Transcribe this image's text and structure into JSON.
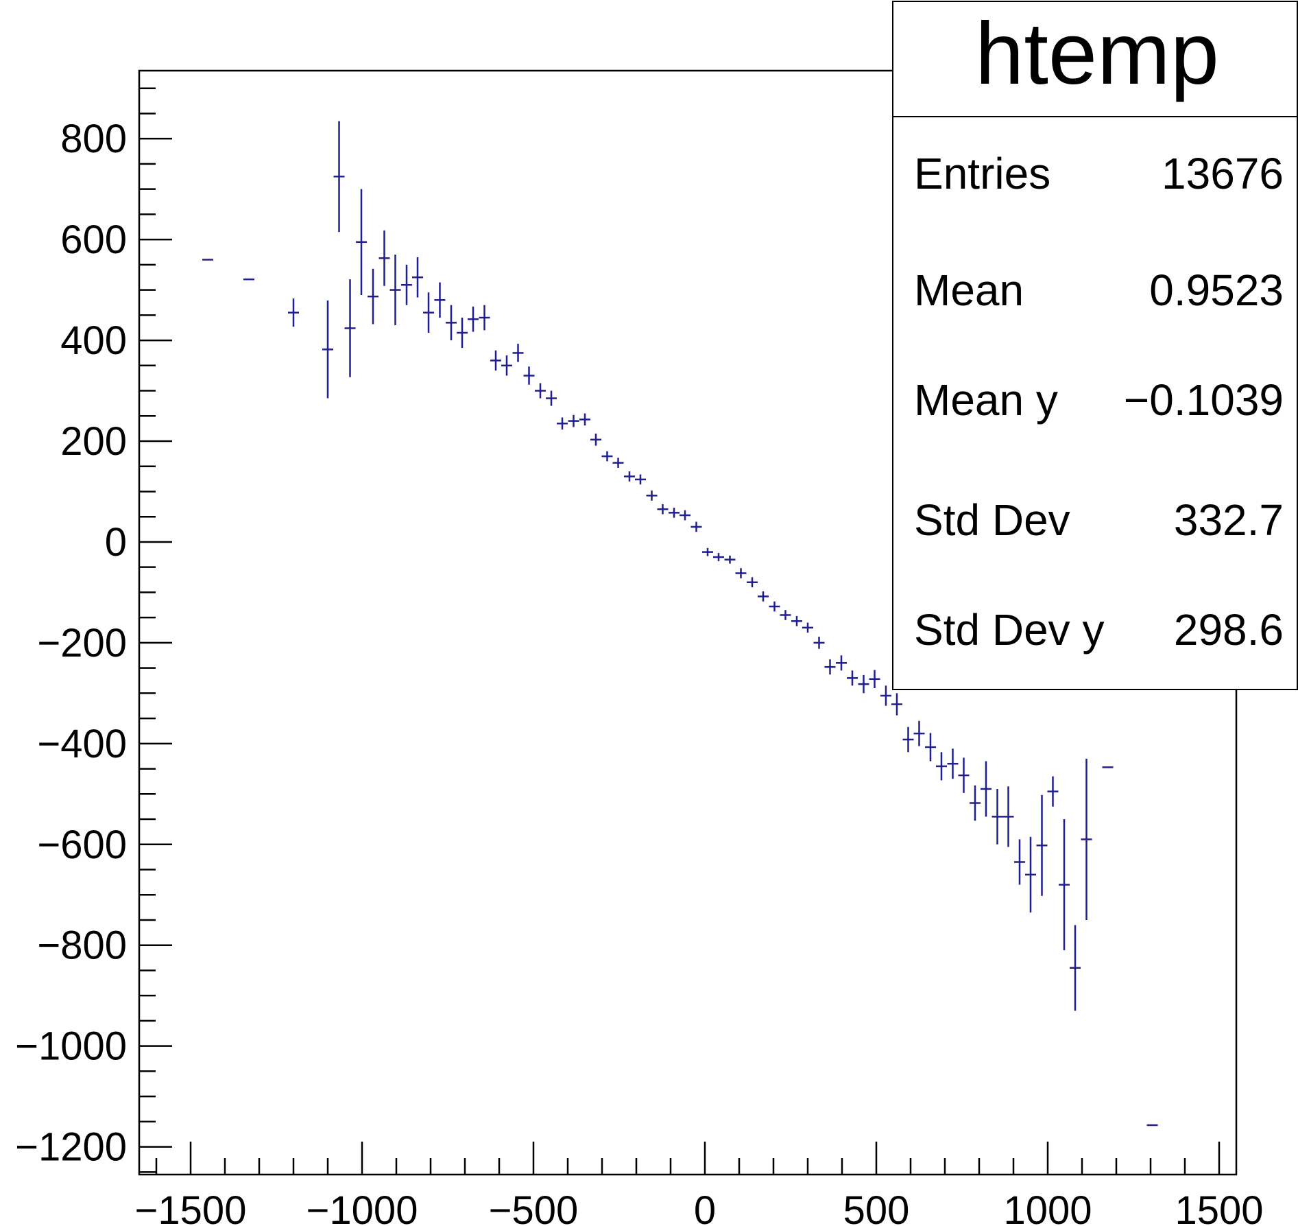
{
  "chart_data": {
    "type": "scatter",
    "style": "profile-error-bars",
    "marker_color": "#1f1f8f",
    "grid": false,
    "legend": "none",
    "xlim": [
      -1650,
      1550
    ],
    "ylim": [
      -1255,
      935
    ],
    "x_ticks": [
      -1500,
      -1000,
      -500,
      0,
      500,
      1000,
      1500
    ],
    "x_tick_labels": [
      "−1500",
      "−1000",
      "−500",
      "0",
      "500",
      "1000",
      "1500"
    ],
    "y_ticks": [
      -1200,
      -1000,
      -800,
      -600,
      -400,
      -200,
      0,
      200,
      400,
      600,
      800
    ],
    "y_tick_labels": [
      "−1200",
      "−1000",
      "−800",
      "−600",
      "−400",
      "−200",
      "0",
      "200",
      "400",
      "600",
      "800"
    ],
    "bin_half_width": 16,
    "points": [
      {
        "x": -1450,
        "y": 560,
        "err": 0
      },
      {
        "x": -1330,
        "y": 521,
        "err": 0
      },
      {
        "x": -1200,
        "y": 455,
        "err": 28
      },
      {
        "x": -1100,
        "y": 382,
        "err": 97
      },
      {
        "x": -1067,
        "y": 725,
        "err": 110
      },
      {
        "x": -1035,
        "y": 424,
        "err": 97
      },
      {
        "x": -1002,
        "y": 595,
        "err": 105
      },
      {
        "x": -968,
        "y": 487,
        "err": 55
      },
      {
        "x": -935,
        "y": 563,
        "err": 55
      },
      {
        "x": -903,
        "y": 500,
        "err": 70
      },
      {
        "x": -870,
        "y": 510,
        "err": 40
      },
      {
        "x": -838,
        "y": 525,
        "err": 40
      },
      {
        "x": -806,
        "y": 455,
        "err": 40
      },
      {
        "x": -773,
        "y": 480,
        "err": 35
      },
      {
        "x": -740,
        "y": 435,
        "err": 35
      },
      {
        "x": -708,
        "y": 415,
        "err": 30
      },
      {
        "x": -676,
        "y": 442,
        "err": 25
      },
      {
        "x": -643,
        "y": 445,
        "err": 25
      },
      {
        "x": -610,
        "y": 360,
        "err": 20
      },
      {
        "x": -578,
        "y": 350,
        "err": 20
      },
      {
        "x": -545,
        "y": 375,
        "err": 18
      },
      {
        "x": -513,
        "y": 330,
        "err": 18
      },
      {
        "x": -480,
        "y": 300,
        "err": 15
      },
      {
        "x": -448,
        "y": 285,
        "err": 15
      },
      {
        "x": -416,
        "y": 235,
        "err": 12
      },
      {
        "x": -383,
        "y": 240,
        "err": 12
      },
      {
        "x": -350,
        "y": 243,
        "err": 12
      },
      {
        "x": -318,
        "y": 203,
        "err": 12
      },
      {
        "x": -285,
        "y": 170,
        "err": 10
      },
      {
        "x": -253,
        "y": 157,
        "err": 10
      },
      {
        "x": -220,
        "y": 130,
        "err": 10
      },
      {
        "x": -188,
        "y": 124,
        "err": 10
      },
      {
        "x": -155,
        "y": 92,
        "err": 10
      },
      {
        "x": -123,
        "y": 65,
        "err": 10
      },
      {
        "x": -90,
        "y": 58,
        "err": 10
      },
      {
        "x": -58,
        "y": 53,
        "err": 10
      },
      {
        "x": -25,
        "y": 30,
        "err": 10
      },
      {
        "x": 8,
        "y": -20,
        "err": 8
      },
      {
        "x": 40,
        "y": -30,
        "err": 8
      },
      {
        "x": 73,
        "y": -35,
        "err": 8
      },
      {
        "x": 105,
        "y": -62,
        "err": 10
      },
      {
        "x": 138,
        "y": -80,
        "err": 10
      },
      {
        "x": 170,
        "y": -108,
        "err": 10
      },
      {
        "x": 203,
        "y": -128,
        "err": 10
      },
      {
        "x": 235,
        "y": -145,
        "err": 10
      },
      {
        "x": 268,
        "y": -157,
        "err": 10
      },
      {
        "x": 300,
        "y": -170,
        "err": 10
      },
      {
        "x": 333,
        "y": -200,
        "err": 12
      },
      {
        "x": 365,
        "y": -248,
        "err": 15
      },
      {
        "x": 398,
        "y": -240,
        "err": 15
      },
      {
        "x": 430,
        "y": -270,
        "err": 15
      },
      {
        "x": 463,
        "y": -282,
        "err": 18
      },
      {
        "x": 495,
        "y": -272,
        "err": 18
      },
      {
        "x": 528,
        "y": -305,
        "err": 20
      },
      {
        "x": 560,
        "y": -322,
        "err": 22
      },
      {
        "x": 593,
        "y": -392,
        "err": 25
      },
      {
        "x": 625,
        "y": -380,
        "err": 25
      },
      {
        "x": 658,
        "y": -407,
        "err": 28
      },
      {
        "x": 690,
        "y": -445,
        "err": 28
      },
      {
        "x": 723,
        "y": -440,
        "err": 30
      },
      {
        "x": 755,
        "y": -463,
        "err": 35
      },
      {
        "x": 788,
        "y": -518,
        "err": 35
      },
      {
        "x": 820,
        "y": -490,
        "err": 55
      },
      {
        "x": 853,
        "y": -545,
        "err": 55
      },
      {
        "x": 885,
        "y": -545,
        "err": 60
      },
      {
        "x": 918,
        "y": -635,
        "err": 45
      },
      {
        "x": 950,
        "y": -660,
        "err": 75
      },
      {
        "x": 983,
        "y": -602,
        "err": 100
      },
      {
        "x": 1015,
        "y": -495,
        "err": 30
      },
      {
        "x": 1048,
        "y": -680,
        "err": 130
      },
      {
        "x": 1080,
        "y": -845,
        "err": 85
      },
      {
        "x": 1113,
        "y": -590,
        "err": 160
      },
      {
        "x": 1175,
        "y": -447,
        "err": 0
      },
      {
        "x": 1305,
        "y": -1157,
        "err": 0
      }
    ]
  },
  "stats": {
    "title": "htemp",
    "rows": [
      {
        "label": "Entries",
        "value": "13676"
      },
      {
        "label": "Mean",
        "value": "0.9523"
      },
      {
        "label": "Mean y",
        "value": "−0.1039"
      },
      {
        "label": "Std Dev",
        "value": "332.7"
      },
      {
        "label": "Std Dev y",
        "value": "298.6"
      }
    ]
  }
}
